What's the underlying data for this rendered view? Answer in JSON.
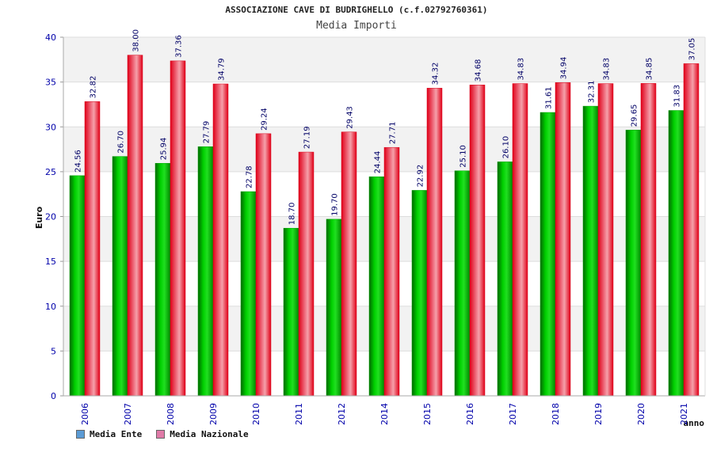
{
  "header": {
    "title": "ASSOCIAZIONE CAVE DI BUDRIGHELLO (c.f.02792760361)",
    "subtitle": "Media Importi"
  },
  "legend": {
    "items": [
      {
        "label": "Media Ente",
        "color": "#5b9bd5"
      },
      {
        "label": "Media Nazionale",
        "color": "#e07aa8"
      }
    ]
  },
  "chart_data": {
    "type": "bar",
    "title": "ASSOCIAZIONE CAVE DI BUDRIGHELLO (c.f.02792760361)",
    "subtitle": "Media Importi",
    "xlabel": "anno",
    "ylabel": "Euro",
    "ylim": [
      0,
      40
    ],
    "yticks": [
      0,
      5,
      10,
      15,
      20,
      25,
      30,
      35,
      40
    ],
    "grid": true,
    "legend_position": "bottom-left",
    "categories": [
      "2006",
      "2007",
      "2008",
      "2009",
      "2010",
      "2011",
      "2012",
      "2014",
      "2015",
      "2016",
      "2017",
      "2018",
      "2019",
      "2020",
      "2021"
    ],
    "series": [
      {
        "name": "Media Ente",
        "color": "#00b000",
        "values": [
          24.56,
          26.7,
          25.94,
          27.79,
          22.78,
          18.7,
          19.7,
          24.44,
          22.92,
          25.1,
          26.1,
          31.61,
          32.31,
          29.65,
          31.83
        ],
        "labels": [
          "24.56",
          "26.70",
          "25.94",
          "27.79",
          "22.78",
          "18.70",
          "19.70",
          "24.44",
          "22.92",
          "25.10",
          "26.10",
          "31.61",
          "32.31",
          "29.65",
          "31.83"
        ]
      },
      {
        "name": "Media Nazionale",
        "color": "#e8182c",
        "values": [
          32.82,
          38.0,
          37.36,
          34.79,
          29.24,
          27.19,
          29.43,
          27.71,
          34.32,
          34.68,
          34.83,
          34.94,
          34.83,
          34.85,
          37.05
        ],
        "labels": [
          "32.82",
          "38.00",
          "37.36",
          "34.79",
          "29.24",
          "27.19",
          "29.43",
          "27.71",
          "34.32",
          "34.68",
          "34.83",
          "34.94",
          "34.83",
          "34.85",
          "37.05"
        ]
      }
    ]
  }
}
